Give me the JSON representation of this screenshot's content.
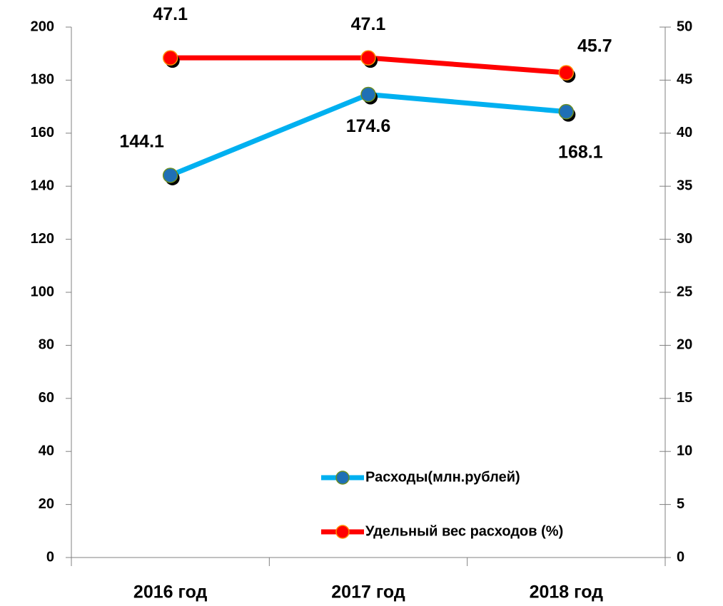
{
  "chart_data": {
    "type": "line",
    "categories": [
      "2016 год",
      "2017 год",
      "2018 год"
    ],
    "series": [
      {
        "name": "Расходы(млн.рублей)",
        "color": "#00b0f0",
        "marker_color": "#1f6fb5",
        "values": [
          144.1,
          174.6,
          168.1
        ]
      },
      {
        "name": "Удельный вес расходов (%)",
        "color": "#ff0000",
        "marker_color": "#ff0000",
        "axis": "y2",
        "values": [
          47.1,
          47.1,
          45.7
        ]
      }
    ],
    "ylim": [
      0,
      200
    ],
    "yticks": [
      0,
      20,
      40,
      60,
      80,
      100,
      120,
      140,
      160,
      180,
      200
    ],
    "y2lim": [
      0,
      50
    ],
    "y2ticks": [
      0,
      5,
      10,
      15,
      20,
      25,
      30,
      35,
      40,
      45,
      50
    ],
    "legend": "lower right",
    "grid": false
  }
}
